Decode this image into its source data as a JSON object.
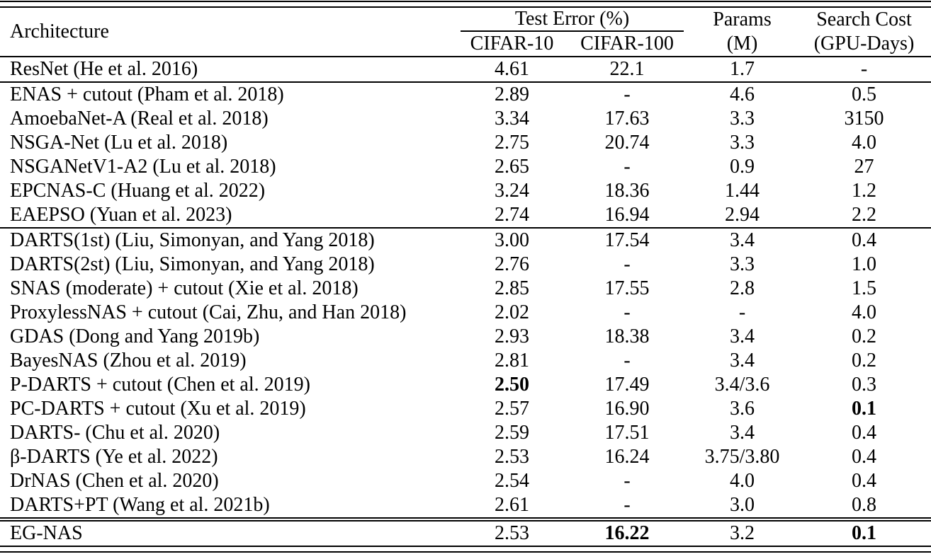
{
  "page": {
    "background_color": "#ffffff",
    "text_color": "#000000",
    "rule_color": "#000000"
  },
  "table": {
    "header": {
      "architecture": "Architecture",
      "test_error_group": "Test Error (%)",
      "cifar10": "CIFAR-10",
      "cifar100": "CIFAR-100",
      "params_line1": "Params",
      "params_line2": "(M)",
      "search_cost_line1": "Search Cost",
      "search_cost_line2": "(GPU-Days)"
    },
    "sections": [
      {
        "rows": [
          {
            "arch": "ResNet (He et al. 2016)",
            "c10": "4.61",
            "c100": "22.1",
            "params": "1.7",
            "cost": "-"
          }
        ]
      },
      {
        "rows": [
          {
            "arch": "ENAS + cutout (Pham et al. 2018)",
            "c10": "2.89",
            "c100": "-",
            "params": "4.6",
            "cost": "0.5"
          },
          {
            "arch": "AmoebaNet-A (Real et al. 2018)",
            "c10": "3.34",
            "c100": "17.63",
            "params": "3.3",
            "cost": "3150"
          },
          {
            "arch": "NSGA-Net (Lu et al. 2018)",
            "c10": "2.75",
            "c100": "20.74",
            "params": "3.3",
            "cost": "4.0"
          },
          {
            "arch": "NSGANetV1-A2 (Lu et al. 2018)",
            "c10": "2.65",
            "c100": "-",
            "params": "0.9",
            "cost": "27"
          },
          {
            "arch": "EPCNAS-C (Huang et al. 2022)",
            "c10": "3.24",
            "c100": "18.36",
            "params": "1.44",
            "cost": "1.2"
          },
          {
            "arch": "EAEPSO (Yuan et al. 2023)",
            "c10": "2.74",
            "c100": "16.94",
            "params": "2.94",
            "cost": "2.2"
          }
        ]
      },
      {
        "rows": [
          {
            "arch": "DARTS(1st) (Liu, Simonyan, and Yang 2018)",
            "c10": "3.00",
            "c100": "17.54",
            "params": "3.4",
            "cost": "0.4"
          },
          {
            "arch": "DARTS(2st) (Liu, Simonyan, and Yang 2018)",
            "c10": "2.76",
            "c100": "-",
            "params": "3.3",
            "cost": "1.0"
          },
          {
            "arch": "SNAS (moderate) + cutout (Xie et al. 2018)",
            "c10": "2.85",
            "c100": "17.55",
            "params": "2.8",
            "cost": "1.5"
          },
          {
            "arch": "ProxylessNAS + cutout (Cai, Zhu, and Han 2018)",
            "c10": "2.02",
            "c100": "-",
            "params": "-",
            "cost": "4.0"
          },
          {
            "arch": "GDAS (Dong and Yang 2019b)",
            "c10": "2.93",
            "c100": "18.38",
            "params": "3.4",
            "cost": "0.2"
          },
          {
            "arch": "BayesNAS (Zhou et al. 2019)",
            "c10": "2.81",
            "c100": "-",
            "params": "3.4",
            "cost": "0.2"
          },
          {
            "arch": "P-DARTS + cutout (Chen et al. 2019)",
            "c10": "2.50",
            "c100": "17.49",
            "params": "3.4/3.6",
            "cost": "0.3",
            "bold": [
              "c10"
            ]
          },
          {
            "arch": "PC-DARTS + cutout (Xu et al. 2019)",
            "c10": "2.57",
            "c100": "16.90",
            "params": "3.6",
            "cost": "0.1",
            "bold": [
              "cost"
            ]
          },
          {
            "arch": "DARTS- (Chu et al. 2020)",
            "c10": "2.59",
            "c100": "17.51",
            "params": "3.4",
            "cost": "0.4"
          },
          {
            "arch": "β-DARTS (Ye et al. 2022)",
            "c10": "2.53",
            "c100": "16.24",
            "params": "3.75/3.80",
            "cost": "0.4"
          },
          {
            "arch": "DrNAS (Chen et al. 2020)",
            "c10": "2.54",
            "c100": "-",
            "params": "4.0",
            "cost": "0.4"
          },
          {
            "arch": "DARTS+PT (Wang et al. 2021b)",
            "c10": "2.61",
            "c100": "-",
            "params": "3.0",
            "cost": "0.8"
          }
        ]
      },
      {
        "rows": [
          {
            "arch": "EG-NAS",
            "c10": "2.53",
            "c100": "16.22",
            "params": "3.2",
            "cost": "0.1",
            "bold": [
              "c100",
              "cost"
            ]
          }
        ]
      }
    ]
  }
}
